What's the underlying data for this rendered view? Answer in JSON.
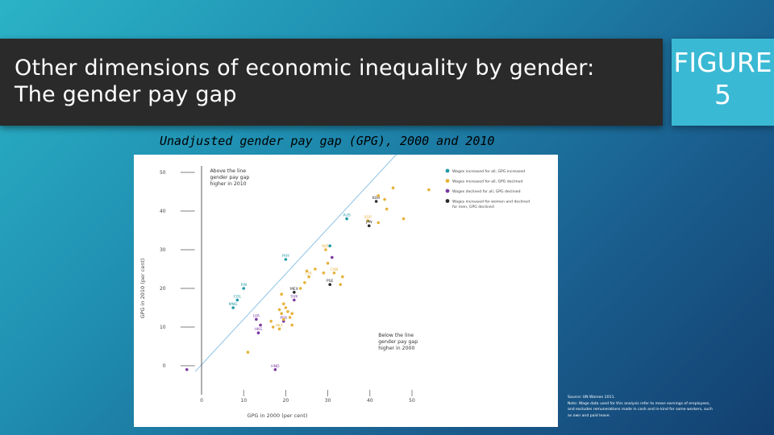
{
  "header": {
    "title_lines": [
      "Other dimensions of economic inequality by gender:",
      "The gender pay gap"
    ],
    "figure_label_lines": [
      "FIGURE",
      "5"
    ]
  },
  "subtitle": "Unadjusted gender pay gap (GPG), 2000 and 2010",
  "colors": {
    "teal": "#1f9aa6",
    "gold": "#e7b23a",
    "purple": "#7b3aa0",
    "dark": "#2b2b2b",
    "diagonal": "#8ec3e6"
  },
  "chart_data": {
    "type": "scatter",
    "xlabel": "GPG in 2000 (per cent)",
    "ylabel": "GPG in 2010 (per cent)",
    "xlim": [
      0,
      50
    ],
    "ylim": [
      -2,
      50
    ],
    "xticks": [
      0,
      10,
      20,
      30,
      40,
      50
    ],
    "yticks": [
      0,
      10,
      20,
      30,
      40,
      50
    ],
    "xtick_labels": [
      "0",
      "10",
      "20",
      "30",
      "40",
      "50"
    ],
    "ytick_labels": [
      "0",
      "10",
      "20",
      "30",
      "40",
      "50"
    ],
    "reference_line": "y = x",
    "annotations": [
      [
        "Above the line",
        "gender pay gap",
        "higher in 2010"
      ],
      [
        "Below the line",
        "gender pay gap",
        "higher in 2000"
      ]
    ],
    "legend": [
      {
        "key": "teal",
        "label_lines": [
          "Wages increased for all, GPG increased"
        ]
      },
      {
        "key": "gold",
        "label_lines": [
          "Wages increased for all, GPG declined"
        ]
      },
      {
        "key": "purple",
        "label_lines": [
          "Wages declined for all, GPG declined"
        ]
      },
      {
        "key": "dark",
        "label_lines": [
          "Wages increased for women and declined",
          "for men, GPG declined"
        ]
      }
    ],
    "points": [
      {
        "x": 41.5,
        "y": 42.5,
        "g": "dark",
        "label": "KOR"
      },
      {
        "x": 34.5,
        "y": 38.0,
        "g": "teal",
        "label": "AUS"
      },
      {
        "x": 39.5,
        "y": 37.5,
        "g": "gold",
        "label": "SGP"
      },
      {
        "x": 39.8,
        "y": 36.2,
        "g": "dark",
        "label": "JPN"
      },
      {
        "x": 20.0,
        "y": 27.5,
        "g": "teal",
        "label": "PHY"
      },
      {
        "x": 29.5,
        "y": 30.0,
        "g": "gold",
        "label": "NZL"
      },
      {
        "x": 31.5,
        "y": 24.0,
        "g": "gold",
        "label": "CAN"
      },
      {
        "x": 25.5,
        "y": 23.0,
        "g": "gold",
        "label": "CHL"
      },
      {
        "x": 30.5,
        "y": 21.0,
        "g": "dark",
        "label": "PSE"
      },
      {
        "x": 22.0,
        "y": 19.0,
        "g": "dark",
        "label": "MEX"
      },
      {
        "x": 22.0,
        "y": 17.0,
        "g": "purple",
        "label": "SVK"
      },
      {
        "x": 10.0,
        "y": 20.0,
        "g": "teal",
        "label": "FIN"
      },
      {
        "x": 8.5,
        "y": 17.0,
        "g": "teal",
        "label": "COL"
      },
      {
        "x": 7.5,
        "y": 15.0,
        "g": "teal",
        "label": "MNG"
      },
      {
        "x": 13.0,
        "y": 12.0,
        "g": "purple",
        "label": "LVA"
      },
      {
        "x": 19.5,
        "y": 11.5,
        "g": "purple",
        "label": "PER"
      },
      {
        "x": 18.5,
        "y": 9.5,
        "g": "gold",
        "label": "MLT"
      },
      {
        "x": 13.5,
        "y": 8.5,
        "g": "purple",
        "label": "HKG"
      },
      {
        "x": 17.5,
        "y": -1.0,
        "g": "purple",
        "label": "HND"
      },
      {
        "x": 54.0,
        "y": 45.5,
        "g": "gold",
        "label": ""
      },
      {
        "x": 45.5,
        "y": 46.0,
        "g": "gold",
        "label": ""
      },
      {
        "x": 42.0,
        "y": 44.0,
        "g": "gold",
        "label": ""
      },
      {
        "x": 43.5,
        "y": 43.0,
        "g": "gold",
        "label": ""
      },
      {
        "x": 44.0,
        "y": 40.5,
        "g": "gold",
        "label": ""
      },
      {
        "x": 48.0,
        "y": 38.0,
        "g": "gold",
        "label": ""
      },
      {
        "x": 42.0,
        "y": 37.0,
        "g": "gold",
        "label": ""
      },
      {
        "x": 30.5,
        "y": 31.0,
        "g": "teal",
        "label": ""
      },
      {
        "x": 31.0,
        "y": 28.0,
        "g": "purple",
        "label": ""
      },
      {
        "x": 30.0,
        "y": 26.5,
        "g": "gold",
        "label": ""
      },
      {
        "x": 29.0,
        "y": 24.0,
        "g": "gold",
        "label": ""
      },
      {
        "x": 27.0,
        "y": 25.0,
        "g": "gold",
        "label": ""
      },
      {
        "x": 25.0,
        "y": 24.5,
        "g": "gold",
        "label": ""
      },
      {
        "x": 33.5,
        "y": 23.0,
        "g": "gold",
        "label": ""
      },
      {
        "x": 33.0,
        "y": 21.0,
        "g": "gold",
        "label": ""
      },
      {
        "x": 23.5,
        "y": 20.0,
        "g": "gold",
        "label": ""
      },
      {
        "x": 24.5,
        "y": 21.5,
        "g": "gold",
        "label": ""
      },
      {
        "x": 19.0,
        "y": 18.5,
        "g": "gold",
        "label": ""
      },
      {
        "x": 19.5,
        "y": 16.0,
        "g": "gold",
        "label": ""
      },
      {
        "x": 20.0,
        "y": 15.0,
        "g": "gold",
        "label": ""
      },
      {
        "x": 18.5,
        "y": 14.5,
        "g": "gold",
        "label": ""
      },
      {
        "x": 20.5,
        "y": 14.0,
        "g": "gold",
        "label": ""
      },
      {
        "x": 19.0,
        "y": 13.5,
        "g": "gold",
        "label": ""
      },
      {
        "x": 21.5,
        "y": 13.5,
        "g": "gold",
        "label": ""
      },
      {
        "x": 21.0,
        "y": 12.5,
        "g": "gold",
        "label": ""
      },
      {
        "x": 19.5,
        "y": 12.0,
        "g": "gold",
        "label": ""
      },
      {
        "x": 21.5,
        "y": 10.5,
        "g": "gold",
        "label": ""
      },
      {
        "x": 16.5,
        "y": 11.5,
        "g": "gold",
        "label": ""
      },
      {
        "x": 17.0,
        "y": 10.0,
        "g": "gold",
        "label": ""
      },
      {
        "x": 11.0,
        "y": 3.5,
        "g": "gold",
        "label": ""
      },
      {
        "x": 14.0,
        "y": 10.5,
        "g": "purple",
        "label": ""
      },
      {
        "x": -3.5,
        "y": -1.0,
        "g": "purple",
        "label": ""
      }
    ]
  },
  "source": {
    "lines": [
      "Source: UN Women 2011.",
      "Note: Wage data used for this analysis refer to mean earnings of employees,",
      "and excludes remunerations made in cash and in-kind for some workers, such",
      "as own and paid leave."
    ]
  }
}
